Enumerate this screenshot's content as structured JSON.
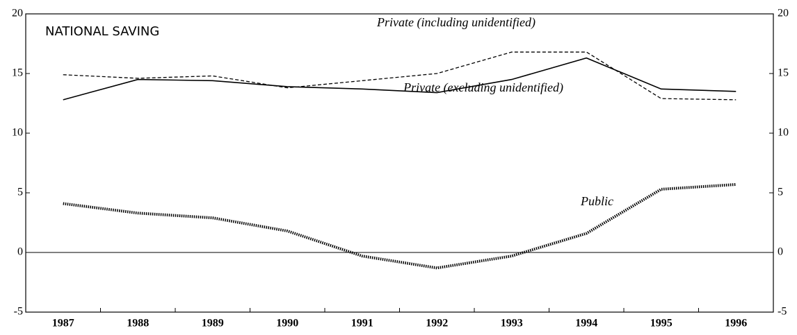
{
  "chart_data": {
    "type": "line",
    "title": "NATIONAL SAVING",
    "categories": [
      "1987",
      "1988",
      "1989",
      "1990",
      "1991",
      "1992",
      "1993",
      "1994",
      "1995",
      "1996"
    ],
    "series": [
      {
        "name": "Private (including unidentified)",
        "color": "#000000",
        "style": "dashed",
        "values": [
          14.9,
          14.6,
          14.8,
          13.8,
          14.4,
          15.0,
          16.8,
          16.8,
          12.9,
          12.8
        ]
      },
      {
        "name": "Private (excluding unidentified)",
        "color": "#000000",
        "style": "solid",
        "values": [
          12.8,
          14.5,
          14.4,
          13.9,
          13.7,
          13.4,
          14.5,
          16.3,
          13.7,
          13.5
        ]
      },
      {
        "name": "Public",
        "color": "#000000",
        "style": "dotted",
        "values": [
          4.1,
          3.3,
          2.9,
          1.8,
          -0.3,
          -1.3,
          -0.3,
          1.6,
          5.3,
          5.7
        ]
      }
    ],
    "ylim": [
      -5,
      20
    ],
    "yticks": [
      -5,
      0,
      5,
      10,
      15,
      20
    ],
    "y2lim": [
      -5,
      20
    ],
    "y2ticks": [
      -5,
      0,
      5,
      10,
      15,
      20
    ],
    "grid": false
  }
}
